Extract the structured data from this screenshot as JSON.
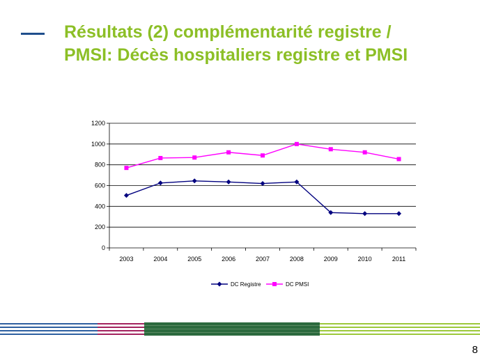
{
  "slide": {
    "title_line1": "Résultats (2) complémentarité registre /",
    "title_line2": "PMSI: Décès hospitaliers registre et PMSI",
    "page_number": "8",
    "title_color": "#8cbf26",
    "accent_color": "#1f4e8c"
  },
  "chart_data": {
    "type": "line",
    "x": [
      "2003",
      "2004",
      "2005",
      "2006",
      "2007",
      "2008",
      "2009",
      "2010",
      "2011"
    ],
    "ylim": [
      0,
      1200
    ],
    "yticks": [
      0,
      200,
      400,
      600,
      800,
      1000,
      1200
    ],
    "grid": true,
    "legend_position": "bottom",
    "series": [
      {
        "name": "DC Registre",
        "color": "#00007f",
        "marker": "diamond",
        "values": [
          505,
          625,
          645,
          635,
          620,
          635,
          340,
          330,
          330
        ]
      },
      {
        "name": "DC PMSI",
        "color": "#ff00ff",
        "marker": "square",
        "values": [
          770,
          865,
          870,
          920,
          890,
          1000,
          950,
          920,
          855
        ]
      }
    ]
  }
}
